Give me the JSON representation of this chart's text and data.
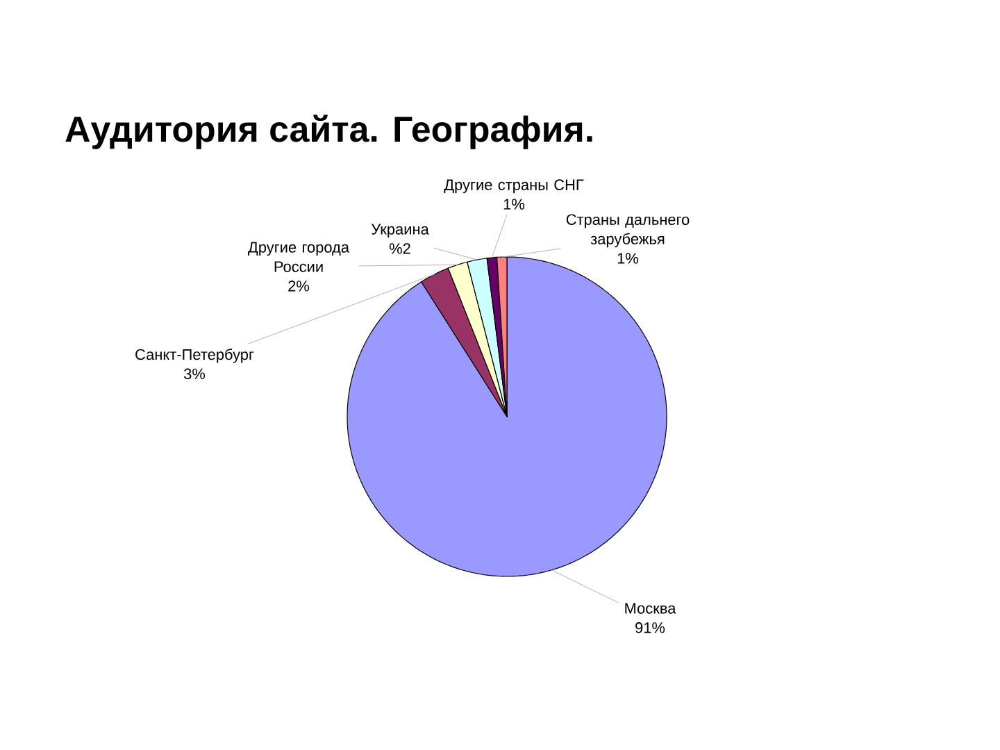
{
  "chart_data": {
    "type": "pie",
    "title": "Аудитория сайта. География.",
    "categories": [
      "Москва",
      "Санкт-Петербург",
      "Другие города России",
      "Украина",
      "Другие страны СНГ",
      "Страны дальнего зарубежья"
    ],
    "values": [
      91,
      3,
      2,
      2,
      1,
      1
    ],
    "value_labels": [
      "91%",
      "3%",
      "2%",
      "%2",
      "1%",
      "1%"
    ],
    "colors": [
      "#9999ff",
      "#993366",
      "#ffffcc",
      "#ccffff",
      "#660066",
      "#ff8080"
    ]
  }
}
